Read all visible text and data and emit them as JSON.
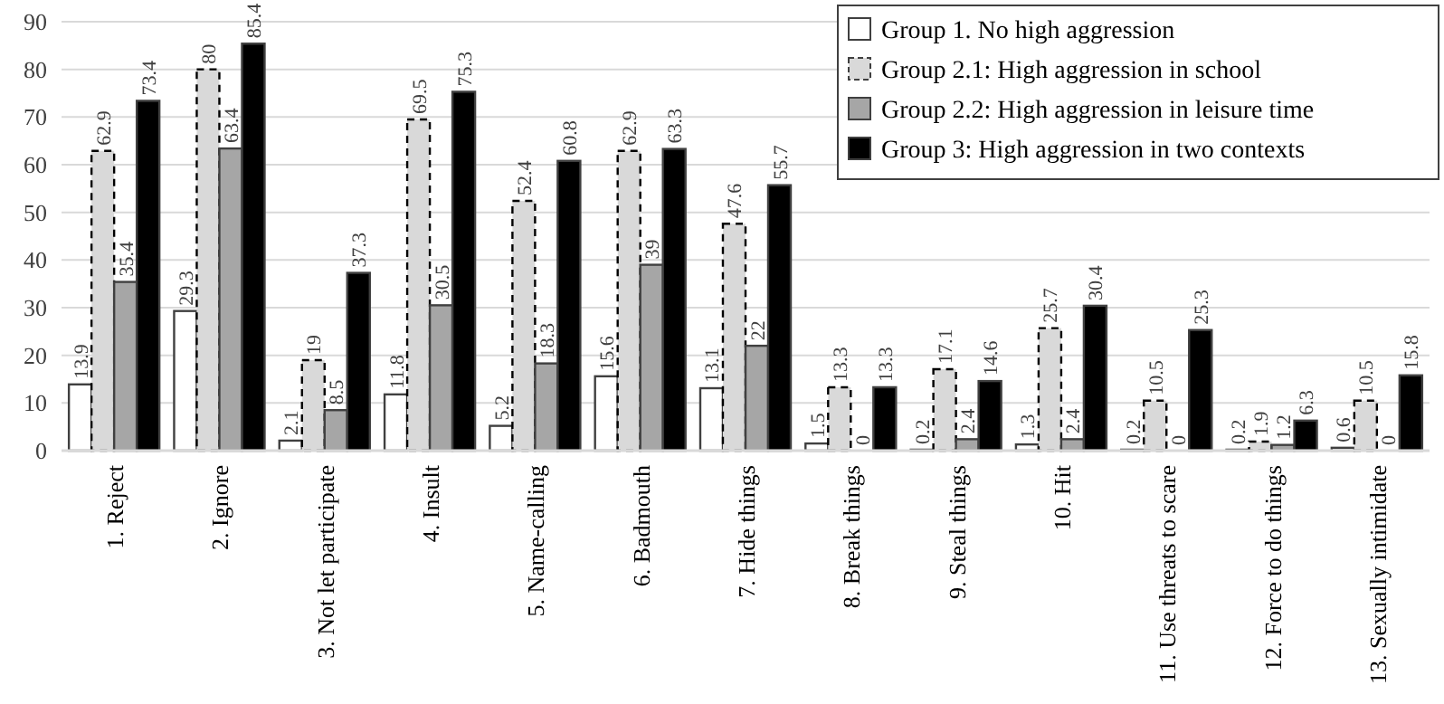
{
  "chart_data": {
    "type": "bar",
    "categories": [
      "1. Reject",
      "2. Ignore",
      "3. Not let participate",
      "4. Insult",
      "5. Name-calling",
      "6. Badmouth",
      "7. Hide things",
      "8. Break things",
      "9. Steal things",
      "10. Hit",
      "11. Use threats to scare",
      "12. Force to do things",
      "13. Sexually intimidate"
    ],
    "series": [
      {
        "name": "Group 1. No high aggression",
        "color": "#ffffff",
        "values": [
          13.9,
          29.3,
          2.1,
          11.8,
          5.2,
          15.6,
          13.1,
          1.5,
          0.2,
          1.3,
          0.2,
          0.2,
          0.6
        ]
      },
      {
        "name": "Group 2.1: High aggression in school",
        "color": "#d9d9d9",
        "line_style": "dashed",
        "values": [
          62.9,
          80,
          19,
          69.5,
          52.4,
          62.9,
          47.6,
          13.3,
          17.1,
          25.7,
          10.5,
          1.9,
          10.5
        ]
      },
      {
        "name": "Group 2.2: High aggression in leisure time",
        "color": "#a6a6a6",
        "values": [
          35.4,
          63.4,
          8.5,
          30.5,
          18.3,
          39,
          22,
          0,
          2.4,
          2.4,
          0,
          1.2,
          0
        ]
      },
      {
        "name": "Group 3: High aggression in two contexts",
        "color": "#000000",
        "values": [
          73.4,
          85.4,
          37.3,
          75.3,
          60.8,
          63.3,
          55.7,
          13.3,
          14.6,
          30.4,
          25.3,
          6.3,
          15.8
        ]
      }
    ],
    "ylim": [
      0,
      90
    ],
    "yticks": [
      0,
      10,
      20,
      30,
      40,
      50,
      60,
      70,
      80,
      90
    ],
    "grid": "y",
    "legend": "top right",
    "data_labels": true
  }
}
